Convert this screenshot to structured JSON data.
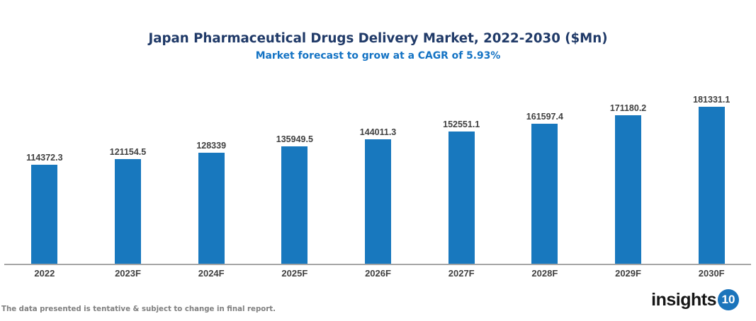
{
  "chart_data": {
    "type": "bar",
    "title": "Japan Pharmaceutical Drugs Delivery Market, 2022-2030 ($Mn)",
    "subtitle": "Market forecast to grow at a CAGR of 5.93%",
    "categories": [
      "2022",
      "2023F",
      "2024F",
      "2025F",
      "2026F",
      "2027F",
      "2028F",
      "2029F",
      "2030F"
    ],
    "values": [
      114372.3,
      121154.5,
      128339,
      135949.5,
      144011.3,
      152551.1,
      161597.4,
      171180.2,
      181331.1
    ],
    "value_labels": [
      "114372.3",
      "121154.5",
      "128339",
      "135949.5",
      "144011.3",
      "152551.1",
      "161597.4",
      "171180.2",
      "181331.1"
    ],
    "xlabel": "",
    "ylabel": "",
    "ylim": [
      0,
      200000
    ],
    "grid": false,
    "legend": false,
    "colors": {
      "bar": "#1878BE",
      "title": "#203A68",
      "subtitle": "#1473C4",
      "value_label": "#404040",
      "axis_label": "#404040",
      "axis_line": "#A6A6A6"
    }
  },
  "footer": {
    "note": "The data presented is tentative & subject to change in final report.",
    "color": "#808080"
  },
  "logo": {
    "text": "insights",
    "badge": "10",
    "text_color": "#161616",
    "badge_color": "#1B74BB"
  }
}
